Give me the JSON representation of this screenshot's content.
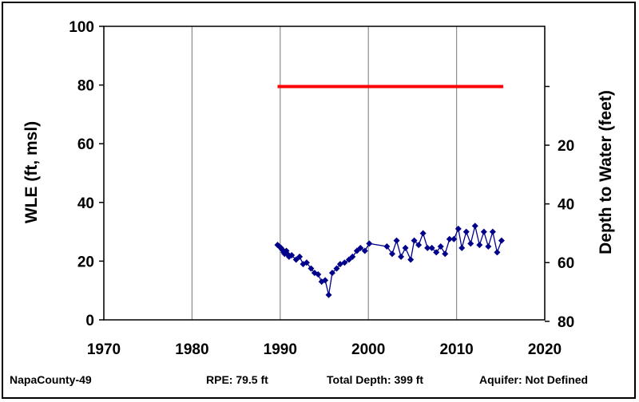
{
  "chart_data": {
    "type": "line",
    "xlabel": "",
    "ylabel": "WLE (ft, msl)",
    "y2label": "Depth to Water (feet)",
    "xlim": [
      1970,
      2020
    ],
    "ylim": [
      0,
      100
    ],
    "x_ticks": [
      "1970",
      "1980",
      "1990",
      "2000",
      "2010",
      "2020"
    ],
    "y_ticks": [
      "0",
      "20",
      "40",
      "60",
      "80",
      "100"
    ],
    "y2_ticks": [
      "20",
      "40",
      "60",
      "80"
    ],
    "grid": "vertical",
    "reference_line": {
      "value": 79.5,
      "x_range": [
        1989.7,
        2015.3
      ],
      "color": "#ff0000"
    },
    "series": [
      {
        "color": "#00008b",
        "marker": "diamond",
        "points": [
          [
            1989.7,
            25.5
          ],
          [
            1989.9,
            25
          ],
          [
            1990.1,
            24.5
          ],
          [
            1990.2,
            24
          ],
          [
            1990.4,
            23
          ],
          [
            1990.5,
            22.5
          ],
          [
            1990.7,
            23.5
          ],
          [
            1990.8,
            22.5
          ],
          [
            1991.0,
            21.5
          ],
          [
            1991.3,
            22
          ],
          [
            1991.8,
            20.5
          ],
          [
            1992.2,
            21.5
          ],
          [
            1992.6,
            19
          ],
          [
            1993.0,
            19.5
          ],
          [
            1993.5,
            17.5
          ],
          [
            1993.9,
            16
          ],
          [
            1994.3,
            15.5
          ],
          [
            1994.7,
            13
          ],
          [
            1995.1,
            13.5
          ],
          [
            1995.5,
            8.5
          ],
          [
            1995.9,
            16
          ],
          [
            1996.4,
            17.5
          ],
          [
            1996.8,
            19
          ],
          [
            1997.3,
            19.5
          ],
          [
            1997.8,
            20.5
          ],
          [
            1998.2,
            21.5
          ],
          [
            1998.7,
            23.5
          ],
          [
            1999.1,
            24.5
          ],
          [
            1999.6,
            23.5
          ],
          [
            2000.1,
            26
          ],
          [
            2002.1,
            25
          ],
          [
            2002.7,
            22.5
          ],
          [
            2003.2,
            27
          ],
          [
            2003.7,
            21.5
          ],
          [
            2004.2,
            24.5
          ],
          [
            2004.8,
            20.5
          ],
          [
            2005.2,
            27
          ],
          [
            2005.7,
            25.5
          ],
          [
            2006.2,
            29.5
          ],
          [
            2006.7,
            24.5
          ],
          [
            2007.2,
            24.5
          ],
          [
            2007.7,
            23
          ],
          [
            2008.2,
            25
          ],
          [
            2008.7,
            22.5
          ],
          [
            2009.2,
            27.5
          ],
          [
            2009.7,
            27.5
          ],
          [
            2010.2,
            31
          ],
          [
            2010.6,
            24.5
          ],
          [
            2011.1,
            30
          ],
          [
            2011.6,
            26
          ],
          [
            2012.1,
            32
          ],
          [
            2012.6,
            25.5
          ],
          [
            2013.1,
            30
          ],
          [
            2013.6,
            25
          ],
          [
            2014.1,
            30
          ],
          [
            2014.6,
            23
          ],
          [
            2015.1,
            27
          ]
        ]
      }
    ]
  },
  "footer": {
    "well": "NapaCounty-49",
    "rpe": "RPE: 79.5 ft",
    "depth": "Total Depth: 399 ft",
    "aquifer": "Aquifer: Not Defined"
  }
}
